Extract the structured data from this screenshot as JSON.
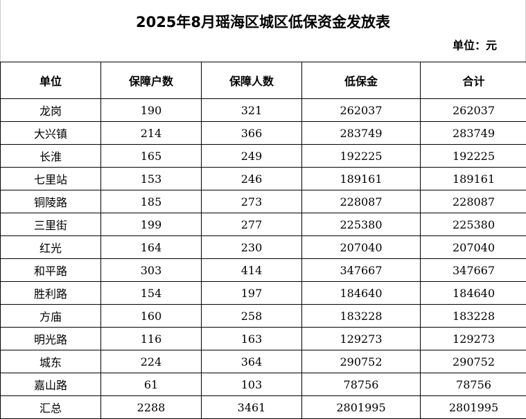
{
  "title": "2025年8月瑶海区城区低保资金发放表",
  "unit": "单位：元",
  "headers": [
    "单位",
    "保障户数",
    "保障人数",
    "低保金",
    "合计"
  ],
  "rows": [
    [
      "龙岗",
      "190",
      "321",
      "262037",
      "262037"
    ],
    [
      "大兴镇",
      "214",
      "366",
      "283749",
      "283749"
    ],
    [
      "长淮",
      "165",
      "249",
      "192225",
      "192225"
    ],
    [
      "七里站",
      "153",
      "246",
      "189161",
      "189161"
    ],
    [
      "铜陵路",
      "185",
      "273",
      "228087",
      "228087"
    ],
    [
      "三里街",
      "199",
      "277",
      "225380",
      "225380"
    ],
    [
      "红光",
      "164",
      "230",
      "207040",
      "207040"
    ],
    [
      "和平路",
      "303",
      "414",
      "347667",
      "347667"
    ],
    [
      "胜利路",
      "154",
      "197",
      "184640",
      "184640"
    ],
    [
      "方庙",
      "160",
      "258",
      "183228",
      "183228"
    ],
    [
      "明光路",
      "116",
      "163",
      "129273",
      "129273"
    ],
    [
      "城东",
      "224",
      "364",
      "290752",
      "290752"
    ],
    [
      "嘉山路",
      "61",
      "103",
      "78756",
      "78756"
    ],
    [
      "汇总",
      "2288",
      "3461",
      "2801995",
      "2801995"
    ]
  ]
}
